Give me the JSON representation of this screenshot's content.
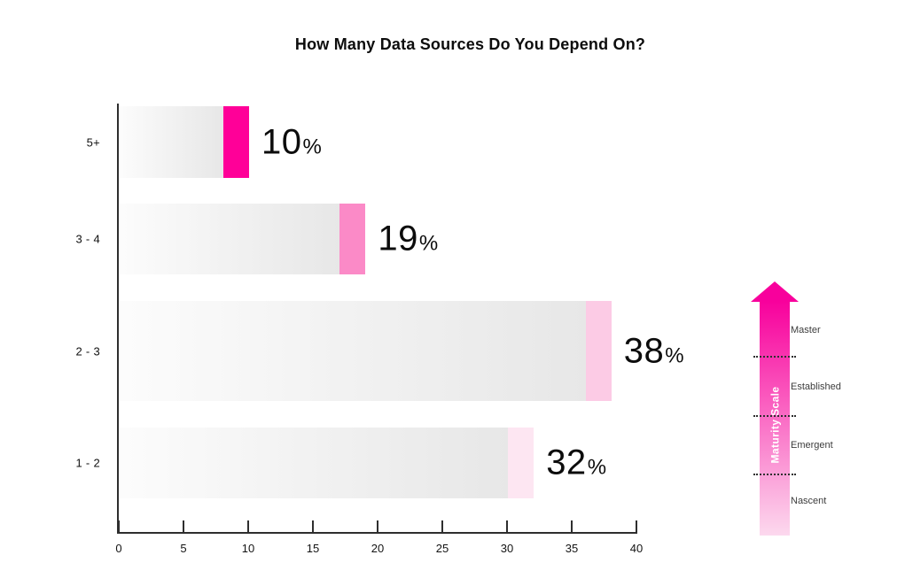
{
  "chart_data": {
    "type": "bar",
    "orientation": "horizontal",
    "title": "How Many Data Sources Do You Depend On?",
    "categories": [
      "5+",
      "3 - 4",
      "2 - 3",
      "1 - 2"
    ],
    "values": [
      10,
      19,
      38,
      32
    ],
    "unit": "%",
    "value_labels": [
      "10%",
      "19%",
      "38%",
      "32%"
    ],
    "xticks": [
      0,
      5,
      10,
      15,
      20,
      25,
      30,
      35,
      40
    ],
    "xlim": [
      0,
      40
    ],
    "grid": "off",
    "bar_gradient_start": "#fcfcfc",
    "bar_gradient_end": "#e7e7e7",
    "tip_span_units": 2,
    "tip_colors": [
      "#ff0098",
      "#fb8ac7",
      "#fccbe5",
      "#fde6f2"
    ]
  },
  "legend": {
    "title": "Maturity Scale",
    "levels": [
      "Master",
      "Established",
      "Emergent",
      "Nascent"
    ],
    "gradient_top": "#f8009c",
    "gradient_bottom": "#fcd9ee",
    "position": "right"
  }
}
